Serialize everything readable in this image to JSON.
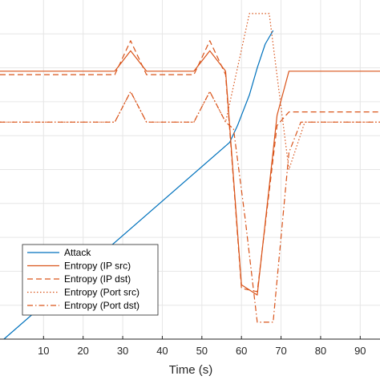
{
  "chart_data": {
    "type": "line",
    "xlabel": "Time (s)",
    "xlim": [
      -1,
      95
    ],
    "ylim": [
      0,
      100
    ],
    "xticks": [
      10,
      20,
      30,
      40,
      50,
      60,
      70,
      80,
      90
    ],
    "xtick_labels": [
      "10",
      "20",
      "30",
      "40",
      "50",
      "60",
      "70",
      "80",
      "90"
    ],
    "grid": true,
    "legend_position": "lower-left",
    "series": [
      {
        "name": "Attack",
        "color": "#0072BD",
        "dash": "",
        "x": [
          0,
          57,
          59,
          62,
          64,
          66,
          68
        ],
        "y": [
          0,
          58,
          63,
          72,
          80,
          87,
          91
        ]
      },
      {
        "name": "Entropy (IP src)",
        "color": "#D95319",
        "dash": "",
        "x": [
          -1,
          28,
          32,
          36,
          48,
          52,
          56,
          60,
          64,
          69,
          72,
          95
        ],
        "y": [
          79,
          79,
          85,
          79,
          79,
          85,
          79,
          16,
          13,
          66,
          79,
          79
        ]
      },
      {
        "name": "Entropy (IP dst)",
        "color": "#D95319",
        "dash": "7,4",
        "x": [
          -1,
          28,
          32,
          36,
          48,
          52,
          56,
          60,
          64,
          69,
          72,
          95
        ],
        "y": [
          78,
          78,
          88,
          78,
          78,
          88,
          78,
          15,
          14,
          63,
          67,
          67
        ]
      },
      {
        "name": "Entropy (Port src)",
        "color": "#D95319",
        "dash": "1.5,2.5",
        "x": [
          -1,
          28,
          32,
          36,
          48,
          52,
          56,
          62,
          67,
          72,
          76,
          95
        ],
        "y": [
          64,
          64,
          73,
          64,
          64,
          73,
          64,
          96,
          96,
          50,
          64,
          64
        ]
      },
      {
        "name": "Entropy (Port dst)",
        "color": "#D95319",
        "dash": "7,3,1.5,3",
        "x": [
          -1,
          28,
          32,
          36,
          48,
          52,
          56,
          58,
          61,
          64,
          68,
          72,
          75,
          95
        ],
        "y": [
          64,
          64,
          73,
          64,
          64,
          73,
          64,
          62,
          35,
          5,
          5,
          55,
          64,
          64
        ]
      }
    ]
  }
}
